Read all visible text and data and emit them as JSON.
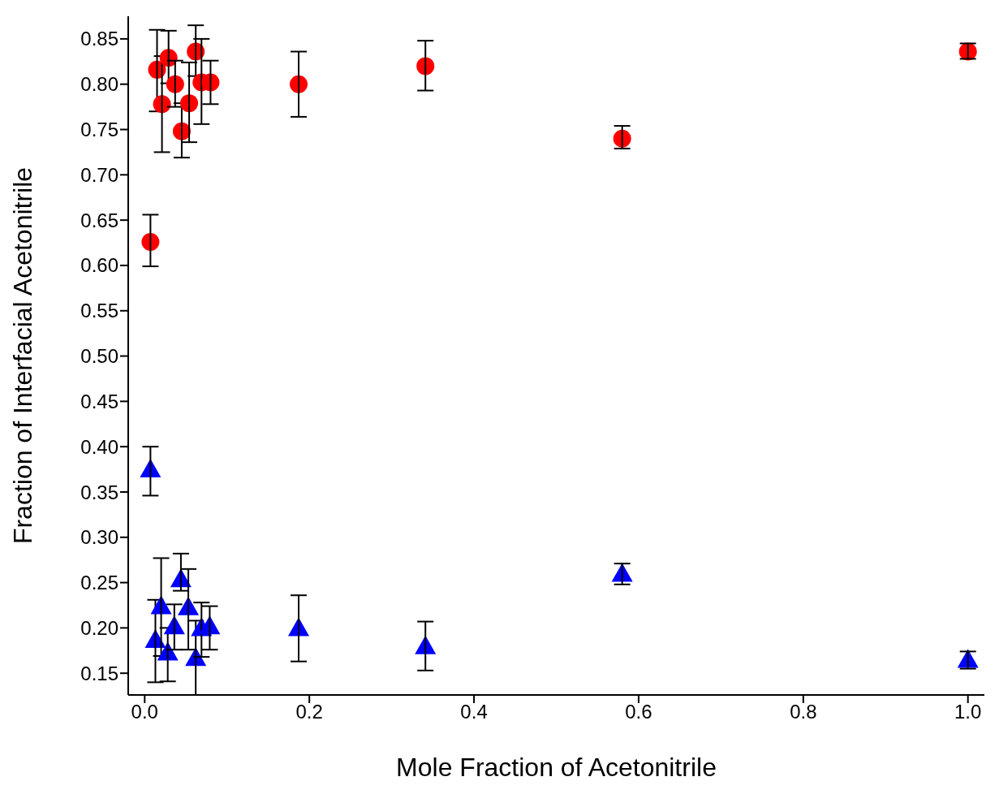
{
  "chart_data": {
    "type": "scatter",
    "xlabel": "Mole Fraction of Acetonitrile",
    "ylabel": "Fraction of Interfacial Acetonitrile",
    "xlim": [
      -0.02,
      1.02
    ],
    "xticks": [
      {
        "value": 0,
        "label": "0.0"
      },
      0.2,
      0.4,
      0.6,
      0.8,
      {
        "value": 1,
        "label": "1.0"
      }
    ],
    "ylim": [
      0.126,
      0.875
    ],
    "yticks": [
      0.15,
      {
        "value": 0.2,
        "label": "0.20"
      },
      0.25,
      {
        "value": 0.3,
        "label": "0.30"
      },
      0.35,
      {
        "value": 0.4,
        "label": "0.40"
      },
      0.45,
      {
        "value": 0.5,
        "label": "0.50"
      },
      0.55,
      {
        "value": 0.6,
        "label": "0.60"
      },
      0.65,
      {
        "value": 0.7,
        "label": "0.70"
      },
      0.75,
      {
        "value": 0.8,
        "label": "0.80"
      },
      0.85
    ],
    "grid": false,
    "legend": false,
    "series": [
      {
        "color": "#ff0000",
        "marker": "circle",
        "x": [
          0.007,
          0.015,
          0.021,
          0.029,
          0.037,
          0.045,
          0.054,
          0.062,
          0.069,
          0.08,
          0.187,
          0.341,
          0.58,
          1.0
        ],
        "values": [
          0.626,
          0.816,
          0.778,
          0.829,
          0.8,
          0.748,
          0.779,
          0.836,
          0.802,
          0.802,
          0.8,
          0.82,
          0.74,
          0.836
        ],
        "errors": [
          [
            0.599,
            0.656
          ],
          [
            0.77,
            0.86
          ],
          [
            0.725,
            0.831
          ],
          [
            0.801,
            0.859
          ],
          [
            0.775,
            0.826
          ],
          [
            0.719,
            0.779
          ],
          [
            0.736,
            0.824
          ],
          [
            0.809,
            0.865
          ],
          [
            0.756,
            0.85
          ],
          [
            0.778,
            0.826
          ],
          [
            0.764,
            0.836
          ],
          [
            0.793,
            0.848
          ],
          [
            0.729,
            0.754
          ],
          [
            0.828,
            0.845
          ]
        ]
      },
      {
        "color": "#0000ff",
        "marker": "triangle",
        "x": [
          0.007,
          0.013,
          0.02,
          0.028,
          0.036,
          0.044,
          0.053,
          0.062,
          0.069,
          0.079,
          0.187,
          0.341,
          0.58,
          1.0
        ],
        "values": [
          0.375,
          0.187,
          0.224,
          0.173,
          0.202,
          0.254,
          0.223,
          0.167,
          0.2,
          0.202,
          0.2,
          0.18,
          0.26,
          0.165
        ],
        "errors": [
          [
            0.346,
            0.4
          ],
          [
            0.14,
            0.231
          ],
          [
            0.169,
            0.277
          ],
          [
            0.141,
            0.2
          ],
          [
            0.176,
            0.226
          ],
          [
            0.241,
            0.282
          ],
          [
            0.176,
            0.265
          ],
          [
            0.126,
            0.208
          ],
          [
            0.168,
            0.228
          ],
          [
            0.176,
            0.224
          ],
          [
            0.163,
            0.236
          ],
          [
            0.153,
            0.207
          ],
          [
            0.248,
            0.271
          ],
          [
            0.155,
            0.174
          ]
        ]
      }
    ]
  }
}
